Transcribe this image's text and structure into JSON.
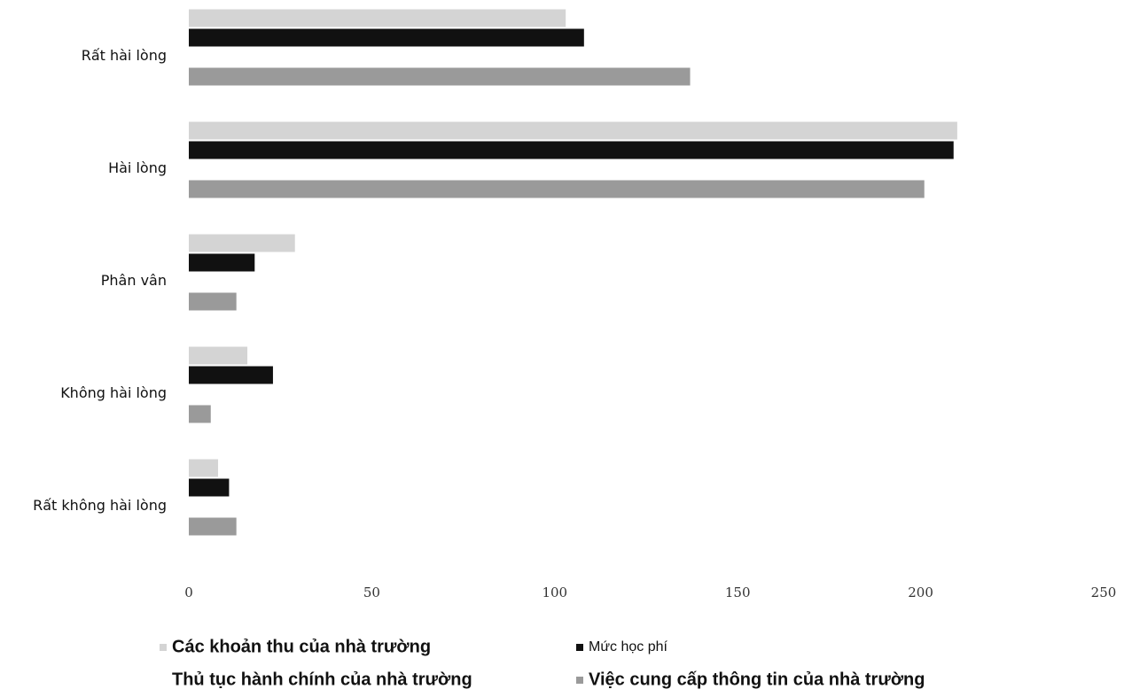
{
  "chart_data": {
    "type": "hbar",
    "categories": [
      "Rất hài lòng",
      "Hài lòng",
      "Phân vân",
      "Không hài lòng",
      "Rất không hài lòng"
    ],
    "series": [
      {
        "name": "Các khoản thu của nhà trường",
        "color": "#d4d4d4",
        "values": [
          103,
          210,
          29,
          16,
          8
        ]
      },
      {
        "name": "Mức học phí",
        "color": "#111111",
        "values": [
          108,
          209,
          18,
          23,
          11
        ]
      },
      {
        "name": "Thủ tục hành chính của nhà trường",
        "color": "#ffffff",
        "values": [
          null,
          null,
          null,
          null,
          null
        ]
      },
      {
        "name": "Việc cung cấp thông tin của nhà trường",
        "color": "#9a9a9a",
        "values": [
          137,
          201,
          13,
          6,
          13
        ]
      }
    ],
    "xlim": [
      0,
      250
    ],
    "xticks": [
      0,
      50,
      100,
      150,
      200,
      250
    ],
    "grid": false
  }
}
